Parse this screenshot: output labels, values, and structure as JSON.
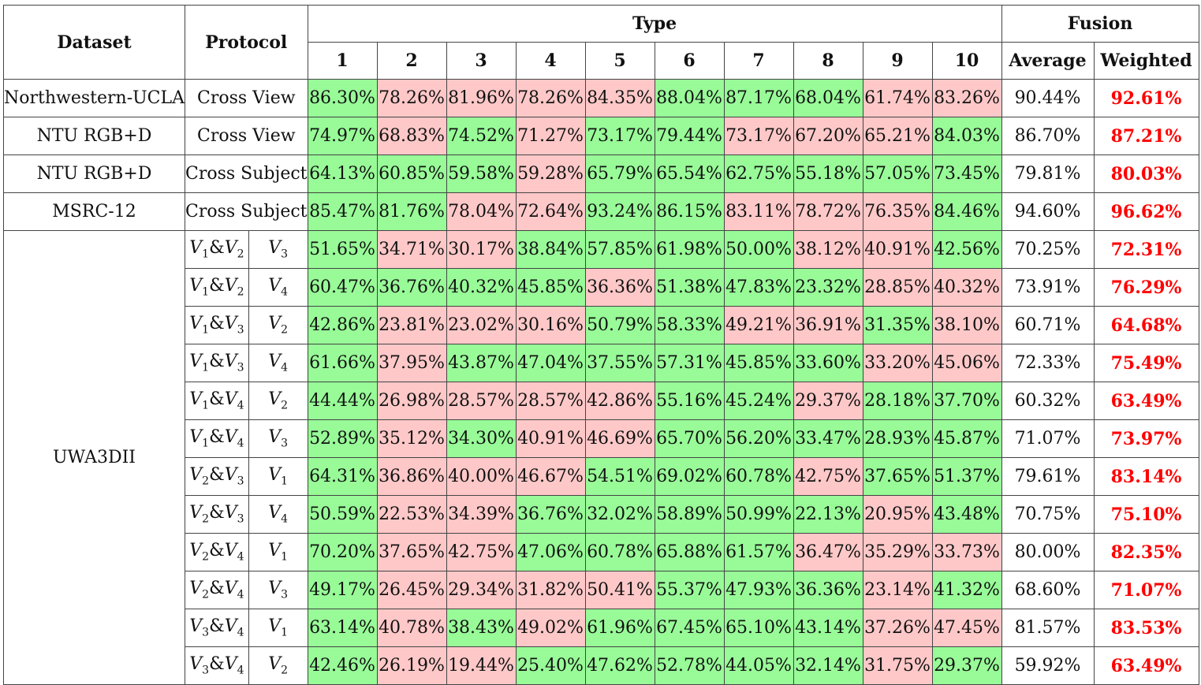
{
  "colors": {
    "positive_bg": "#98fb98",
    "negative_bg": "#ffc8c8",
    "best_text": "#ff0000"
  },
  "header": {
    "dataset": "Dataset",
    "protocol": "Protocol",
    "type": "Type",
    "fusion": "Fusion",
    "type_columns": [
      "1",
      "2",
      "3",
      "4",
      "5",
      "6",
      "7",
      "8",
      "9",
      "10"
    ],
    "average": "Average",
    "weighted": "Weighted"
  },
  "rows": [
    {
      "dataset": "Northwestern-UCLA",
      "protocol": "Cross View",
      "types": [
        "86.30%",
        "78.26%",
        "81.96%",
        "78.26%",
        "84.35%",
        "88.04%",
        "87.17%",
        "68.04%",
        "61.74%",
        "83.26%"
      ],
      "pattern": [
        1,
        0,
        0,
        0,
        0,
        1,
        1,
        1,
        0,
        0
      ],
      "average": "90.44%",
      "weighted": "92.61%"
    },
    {
      "dataset": "NTU RGB+D",
      "protocol": "Cross View",
      "types": [
        "74.97%",
        "68.83%",
        "74.52%",
        "71.27%",
        "73.17%",
        "79.44%",
        "73.17%",
        "67.20%",
        "65.21%",
        "84.03%"
      ],
      "pattern": [
        1,
        0,
        1,
        0,
        1,
        1,
        0,
        0,
        0,
        1
      ],
      "average": "86.70%",
      "weighted": "87.21%"
    },
    {
      "dataset": "NTU RGB+D",
      "protocol": "Cross Subject",
      "types": [
        "64.13%",
        "60.85%",
        "59.58%",
        "59.28%",
        "65.79%",
        "65.54%",
        "62.75%",
        "55.18%",
        "57.05%",
        "73.45%"
      ],
      "pattern": [
        1,
        1,
        1,
        0,
        1,
        1,
        1,
        1,
        1,
        1
      ],
      "average": "79.81%",
      "weighted": "80.03%"
    },
    {
      "dataset": "MSRC-12",
      "protocol": "Cross Subject",
      "types": [
        "85.47%",
        "81.76%",
        "78.04%",
        "72.64%",
        "93.24%",
        "86.15%",
        "83.11%",
        "78.72%",
        "76.35%",
        "84.46%"
      ],
      "pattern": [
        1,
        1,
        0,
        0,
        1,
        1,
        0,
        0,
        0,
        1
      ],
      "average": "94.60%",
      "weighted": "96.62%"
    }
  ],
  "uwa": {
    "dataset": "UWA3DII",
    "rows": [
      {
        "train": [
          "1",
          "2"
        ],
        "test": "3",
        "types": [
          "51.65%",
          "34.71%",
          "30.17%",
          "38.84%",
          "57.85%",
          "61.98%",
          "50.00%",
          "38.12%",
          "40.91%",
          "42.56%"
        ],
        "pattern": [
          1,
          0,
          0,
          1,
          1,
          1,
          1,
          0,
          0,
          1
        ],
        "average": "70.25%",
        "weighted": "72.31%"
      },
      {
        "train": [
          "1",
          "2"
        ],
        "test": "4",
        "types": [
          "60.47%",
          "36.76%",
          "40.32%",
          "45.85%",
          "36.36%",
          "51.38%",
          "47.83%",
          "23.32%",
          "28.85%",
          "40.32%"
        ],
        "pattern": [
          1,
          1,
          1,
          1,
          0,
          1,
          1,
          1,
          0,
          0
        ],
        "average": "73.91%",
        "weighted": "76.29%"
      },
      {
        "train": [
          "1",
          "3"
        ],
        "test": "2",
        "types": [
          "42.86%",
          "23.81%",
          "23.02%",
          "30.16%",
          "50.79%",
          "58.33%",
          "49.21%",
          "36.91%",
          "31.35%",
          "38.10%"
        ],
        "pattern": [
          1,
          0,
          0,
          0,
          1,
          1,
          0,
          0,
          1,
          0
        ],
        "average": "60.71%",
        "weighted": "64.68%"
      },
      {
        "train": [
          "1",
          "3"
        ],
        "test": "4",
        "types": [
          "61.66%",
          "37.95%",
          "43.87%",
          "47.04%",
          "37.55%",
          "57.31%",
          "45.85%",
          "33.60%",
          "33.20%",
          "45.06%"
        ],
        "pattern": [
          1,
          0,
          1,
          1,
          1,
          1,
          1,
          1,
          0,
          0
        ],
        "average": "72.33%",
        "weighted": "75.49%"
      },
      {
        "train": [
          "1",
          "4"
        ],
        "test": "2",
        "types": [
          "44.44%",
          "26.98%",
          "28.57%",
          "28.57%",
          "42.86%",
          "55.16%",
          "45.24%",
          "29.37%",
          "28.18%",
          "37.70%"
        ],
        "pattern": [
          1,
          0,
          0,
          0,
          0,
          1,
          1,
          0,
          1,
          1
        ],
        "average": "60.32%",
        "weighted": "63.49%"
      },
      {
        "train": [
          "1",
          "4"
        ],
        "test": "3",
        "types": [
          "52.89%",
          "35.12%",
          "34.30%",
          "40.91%",
          "46.69%",
          "65.70%",
          "56.20%",
          "33.47%",
          "28.93%",
          "45.87%"
        ],
        "pattern": [
          1,
          0,
          1,
          0,
          0,
          1,
          1,
          1,
          1,
          1
        ],
        "average": "71.07%",
        "weighted": "73.97%"
      },
      {
        "train": [
          "2",
          "3"
        ],
        "test": "1",
        "types": [
          "64.31%",
          "36.86%",
          "40.00%",
          "46.67%",
          "54.51%",
          "69.02%",
          "60.78%",
          "42.75%",
          "37.65%",
          "51.37%"
        ],
        "pattern": [
          1,
          0,
          0,
          0,
          1,
          1,
          1,
          0,
          1,
          1
        ],
        "average": "79.61%",
        "weighted": "83.14%"
      },
      {
        "train": [
          "2",
          "3"
        ],
        "test": "4",
        "types": [
          "50.59%",
          "22.53%",
          "34.39%",
          "36.76%",
          "32.02%",
          "58.89%",
          "50.99%",
          "22.13%",
          "20.95%",
          "43.48%"
        ],
        "pattern": [
          1,
          0,
          0,
          1,
          1,
          1,
          1,
          1,
          0,
          1
        ],
        "average": "70.75%",
        "weighted": "75.10%"
      },
      {
        "train": [
          "2",
          "4"
        ],
        "test": "1",
        "types": [
          "70.20%",
          "37.65%",
          "42.75%",
          "47.06%",
          "60.78%",
          "65.88%",
          "61.57%",
          "36.47%",
          "35.29%",
          "33.73%"
        ],
        "pattern": [
          1,
          0,
          0,
          1,
          1,
          1,
          1,
          0,
          0,
          0
        ],
        "average": "80.00%",
        "weighted": "82.35%"
      },
      {
        "train": [
          "2",
          "4"
        ],
        "test": "3",
        "types": [
          "49.17%",
          "26.45%",
          "29.34%",
          "31.82%",
          "50.41%",
          "55.37%",
          "47.93%",
          "36.36%",
          "23.14%",
          "41.32%"
        ],
        "pattern": [
          1,
          0,
          0,
          0,
          0,
          1,
          1,
          1,
          0,
          1
        ],
        "average": "68.60%",
        "weighted": "71.07%"
      },
      {
        "train": [
          "3",
          "4"
        ],
        "test": "1",
        "types": [
          "63.14%",
          "40.78%",
          "38.43%",
          "49.02%",
          "61.96%",
          "67.45%",
          "65.10%",
          "43.14%",
          "37.26%",
          "47.45%"
        ],
        "pattern": [
          1,
          0,
          1,
          0,
          1,
          1,
          1,
          1,
          0,
          0
        ],
        "average": "81.57%",
        "weighted": "83.53%"
      },
      {
        "train": [
          "3",
          "4"
        ],
        "test": "2",
        "types": [
          "42.46%",
          "26.19%",
          "19.44%",
          "25.40%",
          "47.62%",
          "52.78%",
          "44.05%",
          "32.14%",
          "31.75%",
          "29.37%"
        ],
        "pattern": [
          1,
          0,
          0,
          1,
          1,
          1,
          1,
          1,
          0,
          1
        ],
        "average": "59.92%",
        "weighted": "63.49%"
      }
    ]
  }
}
